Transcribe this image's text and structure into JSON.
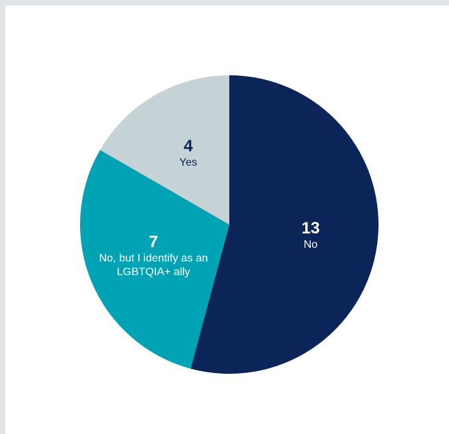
{
  "chart_data": {
    "type": "pie",
    "categories": [
      "No",
      "No, but I identify as an LGBTQIA+ ally",
      "Yes"
    ],
    "values": [
      13,
      7,
      4
    ],
    "colors": [
      "#0b2559",
      "#00a3b4",
      "#c5d3d7"
    ]
  }
}
